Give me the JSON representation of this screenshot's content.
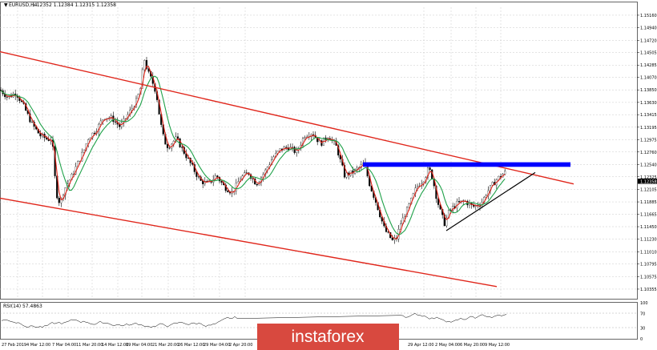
{
  "chart_header": {
    "title": "EURUSD,H4",
    "ohlc": "1.12352 1.12384 1.12315 1.12358"
  },
  "price_tag": "1.12358",
  "rsi_header": "RSI(14) 57.4863",
  "watermark": "instaforex",
  "chart_data": [
    {
      "type": "candlestick",
      "symbol": "EURUSD",
      "timeframe": "H4",
      "y_axis_labels": [
        "1.15160",
        "1.14940",
        "1.14720",
        "1.14505",
        "1.14285",
        "1.14070",
        "1.13850",
        "1.13630",
        "1.13415",
        "1.13195",
        "1.12975",
        "1.12760",
        "1.12540",
        "1.12325",
        "1.12105",
        "1.11885",
        "1.11665",
        "1.11450",
        "1.11230",
        "1.11010",
        "1.10795",
        "1.10575",
        "1.10355"
      ],
      "ylim": [
        1.102,
        1.153
      ],
      "x_axis_labels": [
        "27 Feb 2019",
        "4 Mar 12:00",
        "7 Mar 04:00",
        "11 Mar 20:00",
        "14 Mar 12:00",
        "19 Mar 04:00",
        "21 Mar 20:00",
        "26 Mar 12:00",
        "29 Mar 04:00",
        "2 Apr 20:00",
        "29 Apr 12:00",
        "2 May 04:00",
        "6 May 20:00",
        "9 May 12:00"
      ],
      "price_path": [
        [
          0,
          1.1385
        ],
        [
          10,
          1.1372
        ],
        [
          20,
          1.138
        ],
        [
          30,
          1.1355
        ],
        [
          40,
          1.1325
        ],
        [
          50,
          1.1305
        ],
        [
          60,
          1.1298
        ],
        [
          65,
          1.13
        ],
        [
          70,
          1.1205
        ],
        [
          75,
          1.1185
        ],
        [
          80,
          1.121
        ],
        [
          90,
          1.1235
        ],
        [
          100,
          1.1265
        ],
        [
          105,
          1.128
        ],
        [
          110,
          1.13
        ],
        [
          120,
          1.1315
        ],
        [
          130,
          1.1338
        ],
        [
          140,
          1.1335
        ],
        [
          150,
          1.132
        ],
        [
          160,
          1.1342
        ],
        [
          170,
          1.1365
        ],
        [
          175,
          1.1385
        ],
        [
          180,
          1.144
        ],
        [
          185,
          1.1415
        ],
        [
          190,
          1.14
        ],
        [
          195,
          1.138
        ],
        [
          200,
          1.133
        ],
        [
          205,
          1.1295
        ],
        [
          210,
          1.1285
        ],
        [
          220,
          1.13
        ],
        [
          230,
          1.1275
        ],
        [
          240,
          1.125
        ],
        [
          250,
          1.1225
        ],
        [
          260,
          1.122
        ],
        [
          270,
          1.1235
        ],
        [
          280,
          1.1215
        ],
        [
          290,
          1.1205
        ],
        [
          300,
          1.123
        ],
        [
          310,
          1.124
        ],
        [
          320,
          1.122
        ],
        [
          330,
          1.124
        ],
        [
          340,
          1.1265
        ],
        [
          350,
          1.128
        ],
        [
          360,
          1.1285
        ],
        [
          370,
          1.1275
        ],
        [
          380,
          1.1305
        ],
        [
          390,
          1.131
        ],
        [
          400,
          1.129
        ],
        [
          410,
          1.1305
        ],
        [
          420,
          1.1285
        ],
        [
          430,
          1.1235
        ],
        [
          440,
          1.124
        ],
        [
          450,
          1.125
        ],
        [
          455,
          1.1258
        ],
        [
          460,
          1.1225
        ],
        [
          470,
          1.1185
        ],
        [
          480,
          1.114
        ],
        [
          490,
          1.112
        ],
        [
          495,
          1.1125
        ],
        [
          500,
          1.115
        ],
        [
          510,
          1.118
        ],
        [
          520,
          1.1215
        ],
        [
          530,
          1.123
        ],
        [
          535,
          1.1248
        ],
        [
          540,
          1.123
        ],
        [
          545,
          1.1195
        ],
        [
          550,
          1.117
        ],
        [
          555,
          1.115
        ],
        [
          560,
          1.117
        ],
        [
          570,
          1.1185
        ],
        [
          580,
          1.119
        ],
        [
          590,
          1.118
        ],
        [
          600,
          1.1185
        ],
        [
          610,
          1.121
        ],
        [
          620,
          1.1228
        ],
        [
          630,
          1.124
        ],
        [
          635,
          1.1236
        ]
      ],
      "annotations": [
        {
          "type": "descending channel upper line",
          "color": "#e0261b",
          "from": [
            0,
            1.1452
          ],
          "to": [
            716,
            1.122
          ]
        },
        {
          "type": "descending channel lower line",
          "color": "#e0261b",
          "from": [
            0,
            1.1195
          ],
          "to": [
            620,
            1.104
          ]
        },
        {
          "type": "resistance zone",
          "color": "#0000ff",
          "x_range": [
            453,
            712
          ],
          "y_range": [
            1.125,
            1.1258
          ]
        },
        {
          "type": "rising support line",
          "color": "#000000",
          "from": [
            557,
            1.1138
          ],
          "to": [
            668,
            1.124
          ]
        }
      ],
      "indicators": [
        {
          "name": "moving average",
          "color": "#e0261b"
        },
        {
          "name": "moving average",
          "color": "#1fa149"
        }
      ]
    },
    {
      "type": "line",
      "name": "RSI(14)",
      "current": 57.4863,
      "ylim": [
        0,
        100
      ],
      "y_axis_labels": [
        "100",
        "70",
        "30",
        "0"
      ],
      "levels": [
        70,
        30
      ]
    }
  ]
}
